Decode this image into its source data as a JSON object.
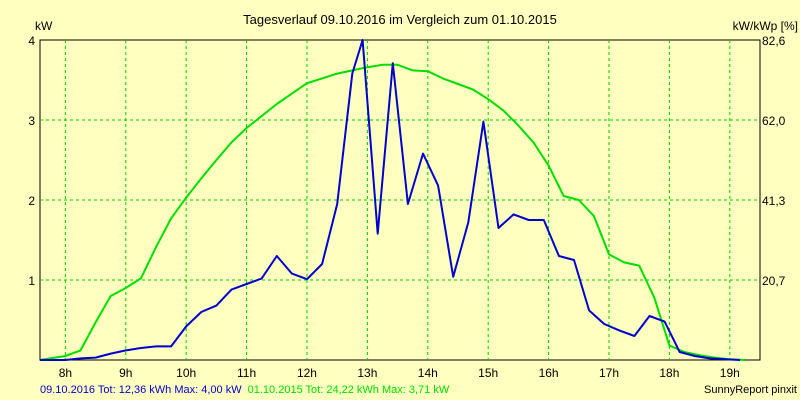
{
  "chart_data": {
    "type": "line",
    "title": "Tagesverlauf 09.10.2016 im Vergleich zum 01.10.2015",
    "ylabel_left": "kW",
    "ylabel_right": "kW/kWp [%]",
    "xlim": [
      7.58,
      19.5
    ],
    "ylim": [
      0,
      4
    ],
    "x_ticks": [
      8,
      9,
      10,
      11,
      12,
      13,
      14,
      15,
      16,
      17,
      18,
      19
    ],
    "x_tick_labels": [
      "8h",
      "9h",
      "10h",
      "11h",
      "12h",
      "13h",
      "14h",
      "15h",
      "16h",
      "17h",
      "18h",
      "19h"
    ],
    "y_ticks": [
      0,
      1,
      2,
      3,
      4
    ],
    "y_tick_labels": [
      "",
      "1",
      "2",
      "3",
      "4"
    ],
    "y2_ticks": [
      1,
      2,
      3,
      4
    ],
    "y2_tick_labels": [
      "20,7",
      "41,3",
      "62,0",
      "82,6"
    ],
    "grid": true,
    "series": [
      {
        "name": "09.10.2016",
        "color": "#0000cc",
        "x": [
          7.58,
          8.0,
          8.25,
          8.5,
          8.75,
          9.0,
          9.25,
          9.5,
          9.75,
          10.0,
          10.25,
          10.5,
          10.75,
          11.0,
          11.25,
          11.5,
          11.75,
          12.0,
          12.25,
          12.5,
          12.75,
          12.92,
          13.17,
          13.42,
          13.67,
          13.92,
          14.17,
          14.42,
          14.67,
          14.92,
          15.17,
          15.42,
          15.67,
          15.92,
          16.17,
          16.42,
          16.67,
          16.92,
          17.17,
          17.42,
          17.67,
          17.92,
          18.17,
          18.42,
          18.67,
          18.92,
          19.17
        ],
        "y": [
          0.0,
          0.0,
          0.02,
          0.03,
          0.08,
          0.12,
          0.15,
          0.17,
          0.17,
          0.42,
          0.6,
          0.68,
          0.88,
          0.95,
          1.02,
          1.3,
          1.08,
          1.01,
          1.2,
          1.95,
          3.58,
          4.0,
          1.58,
          3.71,
          1.95,
          2.58,
          2.18,
          1.04,
          1.72,
          2.98,
          1.65,
          1.82,
          1.75,
          1.75,
          1.3,
          1.25,
          0.62,
          0.45,
          0.37,
          0.3,
          0.55,
          0.48,
          0.1,
          0.05,
          0.02,
          0.01,
          0.0
        ]
      },
      {
        "name": "01.10.2015",
        "color": "#00dd00",
        "x": [
          7.58,
          8.0,
          8.25,
          8.5,
          8.75,
          9.0,
          9.25,
          9.5,
          9.75,
          10.0,
          10.25,
          10.5,
          10.75,
          11.0,
          11.25,
          11.5,
          11.75,
          12.0,
          12.25,
          12.5,
          12.75,
          13.0,
          13.25,
          13.5,
          13.75,
          14.0,
          14.25,
          14.5,
          14.75,
          15.0,
          15.25,
          15.5,
          15.75,
          16.0,
          16.25,
          16.5,
          16.75,
          17.0,
          17.25,
          17.5,
          17.75,
          18.0,
          18.25,
          18.5,
          18.75,
          19.0,
          19.25
        ],
        "y": [
          0.0,
          0.05,
          0.12,
          0.47,
          0.8,
          0.9,
          1.02,
          1.41,
          1.77,
          2.03,
          2.27,
          2.5,
          2.72,
          2.9,
          3.05,
          3.2,
          3.33,
          3.46,
          3.52,
          3.58,
          3.62,
          3.66,
          3.69,
          3.69,
          3.62,
          3.61,
          3.52,
          3.45,
          3.38,
          3.26,
          3.12,
          2.93,
          2.72,
          2.43,
          2.05,
          2.0,
          1.8,
          1.32,
          1.22,
          1.18,
          0.78,
          0.18,
          0.1,
          0.06,
          0.03,
          0.01,
          0.0
        ]
      }
    ],
    "footer": {
      "series_1_summary": "09.10.2016 Tot: 12,36 kWh Max: 4,00 kW",
      "series_2_summary": "01.10.2015 Tot: 24,22 kWh Max: 3,71 kW",
      "credit": "SunnyReport pinxit"
    },
    "colors": {
      "background": "#ffffc0",
      "grid": "#00cc00",
      "series_1": "#0000cc",
      "series_2": "#00dd00"
    }
  }
}
